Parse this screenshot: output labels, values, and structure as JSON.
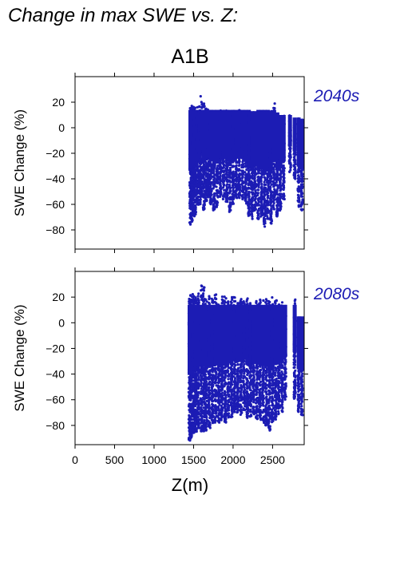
{
  "figure": {
    "title": "Change in max SWE vs. Z:",
    "scenario": "A1B",
    "xlabel": "Z(m)",
    "point_color": "#1c1cb4",
    "label_color": "#1c1cb4"
  },
  "chart_data": [
    {
      "type": "scatter",
      "period_label": "2040s",
      "ylabel": "SWE Change (%)",
      "xlim": [
        0,
        2900
      ],
      "ylim": [
        -95,
        40
      ],
      "xticks": [
        0,
        500,
        1000,
        1500,
        2000,
        2500
      ],
      "yticks": [
        -80,
        -60,
        -40,
        -20,
        0,
        20
      ],
      "x_range_of_points": [
        1450,
        2880
      ],
      "columns": [
        {
          "x": 1460,
          "ymin": -76,
          "ymax": 18
        },
        {
          "x": 1480,
          "ymin": -74,
          "ymax": 19
        },
        {
          "x": 1500,
          "ymin": -70,
          "ymax": 17
        },
        {
          "x": 1520,
          "ymin": -68,
          "ymax": 18
        },
        {
          "x": 1550,
          "ymin": -62,
          "ymax": 17
        },
        {
          "x": 1580,
          "ymin": -60,
          "ymax": 20
        },
        {
          "x": 1600,
          "ymin": -55,
          "ymax": 26
        },
        {
          "x": 1630,
          "ymin": -65,
          "ymax": 22
        },
        {
          "x": 1660,
          "ymin": -58,
          "ymax": 15
        },
        {
          "x": 1690,
          "ymin": -55,
          "ymax": 15
        },
        {
          "x": 1720,
          "ymin": -60,
          "ymax": 15
        },
        {
          "x": 1760,
          "ymin": -65,
          "ymax": 14
        },
        {
          "x": 1800,
          "ymin": -62,
          "ymax": 14
        },
        {
          "x": 1840,
          "ymin": -55,
          "ymax": 14
        },
        {
          "x": 1880,
          "ymin": -56,
          "ymax": 14
        },
        {
          "x": 1920,
          "ymin": -58,
          "ymax": 14
        },
        {
          "x": 1960,
          "ymin": -66,
          "ymax": 14
        },
        {
          "x": 2000,
          "ymin": -60,
          "ymax": 14
        },
        {
          "x": 2040,
          "ymin": -55,
          "ymax": 14
        },
        {
          "x": 2080,
          "ymin": -55,
          "ymax": 14
        },
        {
          "x": 2120,
          "ymin": -56,
          "ymax": 14
        },
        {
          "x": 2160,
          "ymin": -60,
          "ymax": 14
        },
        {
          "x": 2200,
          "ymin": -70,
          "ymax": 14
        },
        {
          "x": 2240,
          "ymin": -72,
          "ymax": 13
        },
        {
          "x": 2280,
          "ymin": -65,
          "ymax": 13
        },
        {
          "x": 2320,
          "ymin": -72,
          "ymax": 14
        },
        {
          "x": 2360,
          "ymin": -70,
          "ymax": 14
        },
        {
          "x": 2400,
          "ymin": -78,
          "ymax": 14
        },
        {
          "x": 2440,
          "ymin": -72,
          "ymax": 14
        },
        {
          "x": 2480,
          "ymin": -76,
          "ymax": 13
        },
        {
          "x": 2520,
          "ymin": -64,
          "ymax": 20
        },
        {
          "x": 2560,
          "ymin": -70,
          "ymax": 12
        },
        {
          "x": 2600,
          "ymin": -66,
          "ymax": 10
        },
        {
          "x": 2640,
          "ymin": -56,
          "ymax": 10
        },
        {
          "x": 2720,
          "ymin": -35,
          "ymax": 10
        },
        {
          "x": 2780,
          "ymin": -40,
          "ymax": 8
        },
        {
          "x": 2830,
          "ymin": -62,
          "ymax": 8
        },
        {
          "x": 2870,
          "ymin": -65,
          "ymax": 7
        }
      ]
    },
    {
      "type": "scatter",
      "period_label": "2080s",
      "ylabel": "SWE Change (%)",
      "xlim": [
        0,
        2900
      ],
      "ylim": [
        -95,
        40
      ],
      "xticks": [
        0,
        500,
        1000,
        1500,
        2000,
        2500
      ],
      "xtick_labels": [
        "0",
        "500",
        "1000",
        "1500",
        "2000",
        "2500"
      ],
      "yticks": [
        -80,
        -60,
        -40,
        -20,
        0,
        20
      ],
      "x_range_of_points": [
        1450,
        2880
      ],
      "columns": [
        {
          "x": 1450,
          "ymin": -92,
          "ymax": 22
        },
        {
          "x": 1470,
          "ymin": -90,
          "ymax": 22
        },
        {
          "x": 1500,
          "ymin": -86,
          "ymax": 23
        },
        {
          "x": 1530,
          "ymin": -86,
          "ymax": 22
        },
        {
          "x": 1560,
          "ymin": -82,
          "ymax": 24
        },
        {
          "x": 1600,
          "ymin": -85,
          "ymax": 32
        },
        {
          "x": 1630,
          "ymin": -85,
          "ymax": 28
        },
        {
          "x": 1660,
          "ymin": -84,
          "ymax": 22
        },
        {
          "x": 1700,
          "ymin": -82,
          "ymax": 22
        },
        {
          "x": 1740,
          "ymin": -80,
          "ymax": 22
        },
        {
          "x": 1780,
          "ymin": -78,
          "ymax": 22
        },
        {
          "x": 1820,
          "ymin": -78,
          "ymax": 21
        },
        {
          "x": 1860,
          "ymin": -76,
          "ymax": 21
        },
        {
          "x": 1900,
          "ymin": -78,
          "ymax": 21
        },
        {
          "x": 1940,
          "ymin": -74,
          "ymax": 20
        },
        {
          "x": 1980,
          "ymin": -74,
          "ymax": 20
        },
        {
          "x": 2020,
          "ymin": -70,
          "ymax": 20
        },
        {
          "x": 2060,
          "ymin": -70,
          "ymax": 20
        },
        {
          "x": 2100,
          "ymin": -72,
          "ymax": 20
        },
        {
          "x": 2140,
          "ymin": -68,
          "ymax": 20
        },
        {
          "x": 2180,
          "ymin": -74,
          "ymax": 20
        },
        {
          "x": 2220,
          "ymin": -74,
          "ymax": 20
        },
        {
          "x": 2260,
          "ymin": -72,
          "ymax": 20
        },
        {
          "x": 2300,
          "ymin": -75,
          "ymax": 20
        },
        {
          "x": 2340,
          "ymin": -76,
          "ymax": 20
        },
        {
          "x": 2380,
          "ymin": -78,
          "ymax": 20
        },
        {
          "x": 2420,
          "ymin": -80,
          "ymax": 21
        },
        {
          "x": 2460,
          "ymin": -84,
          "ymax": 20
        },
        {
          "x": 2500,
          "ymin": -78,
          "ymax": 20
        },
        {
          "x": 2540,
          "ymin": -76,
          "ymax": 20
        },
        {
          "x": 2580,
          "ymin": -72,
          "ymax": 18
        },
        {
          "x": 2620,
          "ymin": -70,
          "ymax": 16
        },
        {
          "x": 2660,
          "ymin": -60,
          "ymax": 14
        },
        {
          "x": 2780,
          "ymin": -60,
          "ymax": 22
        },
        {
          "x": 2830,
          "ymin": -70,
          "ymax": 5
        },
        {
          "x": 2870,
          "ymin": -72,
          "ymax": 5
        }
      ]
    }
  ]
}
